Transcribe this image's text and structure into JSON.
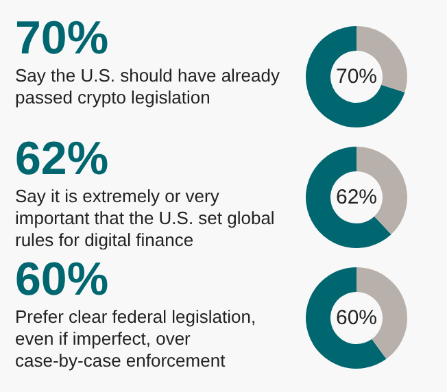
{
  "chart_data": [
    {
      "type": "donut",
      "title": "70%",
      "subtitle": "Say the U.S. should have already passed crypto legislation",
      "categories": [
        null,
        null
      ],
      "values": [
        70,
        30
      ],
      "colors": [
        "#006670",
        "#b8b0ab"
      ],
      "annotations": [
        "70%"
      ]
    },
    {
      "type": "donut",
      "title": "62%",
      "subtitle": "Say it is extremely or very important that the U.S. set global rules for digital finance",
      "categories": [
        null,
        null
      ],
      "values": [
        62,
        38
      ],
      "colors": [
        "#006670",
        "#b8b0ab"
      ],
      "annotations": [
        "62%"
      ]
    },
    {
      "type": "donut",
      "title": "60%",
      "subtitle": "Prefer clear federal legislation, even if imperfect, over case-by-case enforcement",
      "categories": [
        null,
        null
      ],
      "values": [
        60,
        40
      ],
      "colors": [
        "#006670",
        "#b8b0ab"
      ],
      "annotations": [
        "60%"
      ]
    }
  ]
}
